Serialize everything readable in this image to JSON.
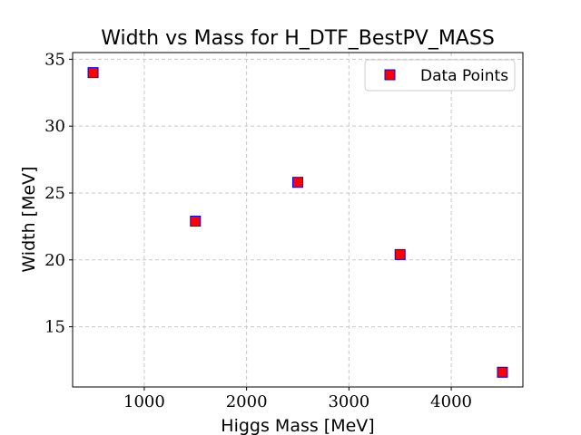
{
  "chart_data": {
    "type": "scatter",
    "title": "Width vs Mass for H_DTF_BestPV_MASS",
    "xlabel": "Higgs Mass [MeV]",
    "ylabel": "Width [MeV]",
    "xlim": [
      300,
      4700
    ],
    "ylim": [
      10.5,
      35.5
    ],
    "xticks": [
      1000,
      2000,
      3000,
      4000
    ],
    "yticks": [
      15,
      20,
      25,
      30,
      35
    ],
    "grid": true,
    "legend_position": "top-right",
    "series": [
      {
        "name": "Data Points",
        "marker": "square",
        "fill_color": "#ff0000",
        "edge_color": "#0000ff",
        "x": [
          500,
          1500,
          2500,
          3500,
          4500
        ],
        "y": [
          34.0,
          22.9,
          25.8,
          20.4,
          11.6
        ]
      }
    ]
  }
}
